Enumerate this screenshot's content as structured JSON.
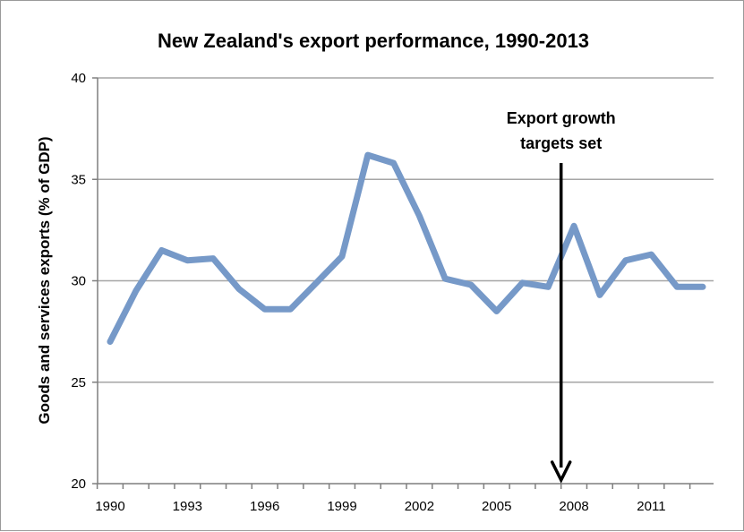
{
  "chart_data": {
    "type": "line",
    "title": "New Zealand's export performance, 1990-2013",
    "xlabel": "",
    "ylabel": "Goods and services exports (% of GDP)",
    "xlim": [
      1990,
      2013
    ],
    "ylim": [
      20,
      40
    ],
    "y_ticks": [
      20,
      25,
      30,
      35,
      40
    ],
    "x_tick_labels": [
      "1990",
      "1993",
      "1996",
      "1999",
      "2002",
      "2005",
      "2008",
      "2011"
    ],
    "grid": "horizontal",
    "series": [
      {
        "color": "#7699C8",
        "x": [
          1990,
          1991,
          1992,
          1993,
          1994,
          1995,
          1996,
          1997,
          1998,
          1999,
          2000,
          2001,
          2002,
          2003,
          2004,
          2005,
          2006,
          2007,
          2008,
          2009,
          2010,
          2011,
          2012,
          2013
        ],
        "values": [
          27.0,
          29.5,
          31.5,
          31.0,
          31.1,
          29.6,
          28.6,
          28.6,
          29.9,
          31.2,
          36.2,
          35.8,
          33.2,
          30.1,
          29.8,
          28.5,
          29.9,
          29.7,
          32.7,
          29.3,
          31.0,
          31.3,
          29.7,
          29.7
        ]
      }
    ],
    "annotations": [
      {
        "lines": [
          "Export growth",
          "targets set"
        ],
        "x": 2007.5,
        "arrow_from_y": 40,
        "arrow_to_y": 20,
        "color": "#000000"
      }
    ],
    "colors": {
      "grid": "#A6A6A6",
      "axis": "#7F7F7F",
      "arrow": "#000000"
    }
  }
}
